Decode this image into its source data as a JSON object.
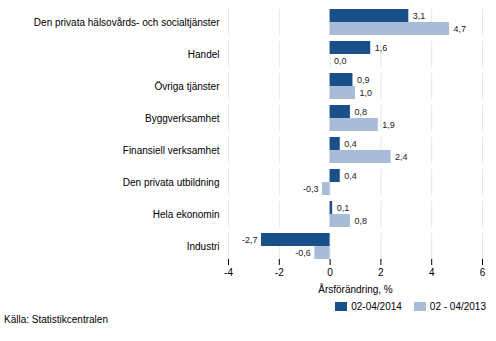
{
  "chart_data": {
    "type": "bar",
    "orientation": "horizontal",
    "categories": [
      "Den privata hälsovårds- och socialtjänster",
      "Handel",
      "Övriga tjänster",
      "Byggverksamhet",
      "Finansiell verksamhet",
      "Den privata utbildning",
      "Hela ekonomin",
      "Industri"
    ],
    "series": [
      {
        "name": "02-04/2014",
        "color": "#1a4f8a",
        "values": [
          3.1,
          1.6,
          0.9,
          0.8,
          0.4,
          0.4,
          0.1,
          -2.7
        ],
        "value_labels": [
          "3,1",
          "1,6",
          "0,9",
          "0,8",
          "0,4",
          "0,4",
          "0,1",
          "-2,7"
        ]
      },
      {
        "name": "02 - 04/2013",
        "color": "#a8bcd8",
        "values": [
          4.7,
          0.0,
          1.0,
          1.9,
          2.4,
          -0.3,
          0.8,
          -0.6
        ],
        "value_labels": [
          "4,7",
          "0,0",
          "1,0",
          "1,9",
          "2,4",
          "-0,3",
          "0,8",
          "-0,6"
        ]
      }
    ],
    "xlabel": "Årsförändring, %",
    "xlim": [
      -4,
      6
    ],
    "xticks": [
      -4,
      -2,
      0,
      2,
      4,
      6
    ],
    "grid": true,
    "legend": "lower right",
    "data_labels": true,
    "annotations": [
      "Källa: Statistikcentralen"
    ]
  }
}
